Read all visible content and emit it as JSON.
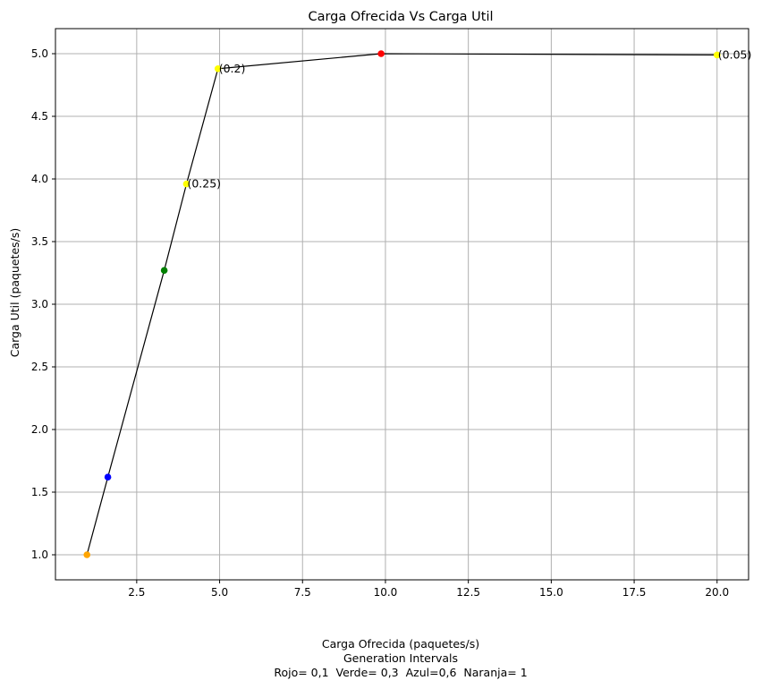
{
  "chart_data": {
    "type": "line",
    "title": "Carga Ofrecida Vs Carga Util",
    "xlabel": "Carga Ofrecida (paquetes/s)",
    "xlabel_lines": [
      "Generation Intervals",
      "Rojo= 0,1  Verde= 0,3  Azul=0,6  Naranja= 1"
    ],
    "ylabel": "Carga Util (paquetes/s)",
    "xlim": [
      0.05,
      20.95
    ],
    "ylim": [
      0.8,
      5.2
    ],
    "x_ticks": [
      "2.5",
      "5.0",
      "7.5",
      "10.0",
      "12.5",
      "15.0",
      "17.5",
      "20.0"
    ],
    "x_tick_values": [
      2.5,
      5.0,
      7.5,
      10.0,
      12.5,
      15.0,
      17.5,
      20.0
    ],
    "y_ticks": [
      "1.0",
      "1.5",
      "2.0",
      "2.5",
      "3.0",
      "3.5",
      "4.0",
      "4.5",
      "5.0"
    ],
    "y_tick_values": [
      1.0,
      1.5,
      2.0,
      2.5,
      3.0,
      3.5,
      4.0,
      4.5,
      5.0
    ],
    "grid": true,
    "line_color": "#000000",
    "points": [
      {
        "x": 1.0,
        "y": 1.0,
        "color": "#ffa500",
        "label": ""
      },
      {
        "x": 1.63,
        "y": 1.62,
        "color": "#0000ff",
        "label": ""
      },
      {
        "x": 3.33,
        "y": 3.27,
        "color": "#008000",
        "label": ""
      },
      {
        "x": 4.0,
        "y": 3.96,
        "color": "#ffff00",
        "label": "(0.25)"
      },
      {
        "x": 4.95,
        "y": 4.88,
        "color": "#ffff00",
        "label": "(0.2)"
      },
      {
        "x": 9.87,
        "y": 5.0,
        "color": "#ff0000",
        "label": ""
      },
      {
        "x": 20.0,
        "y": 4.99,
        "color": "#ffff00",
        "label": "(0.05)"
      }
    ]
  }
}
